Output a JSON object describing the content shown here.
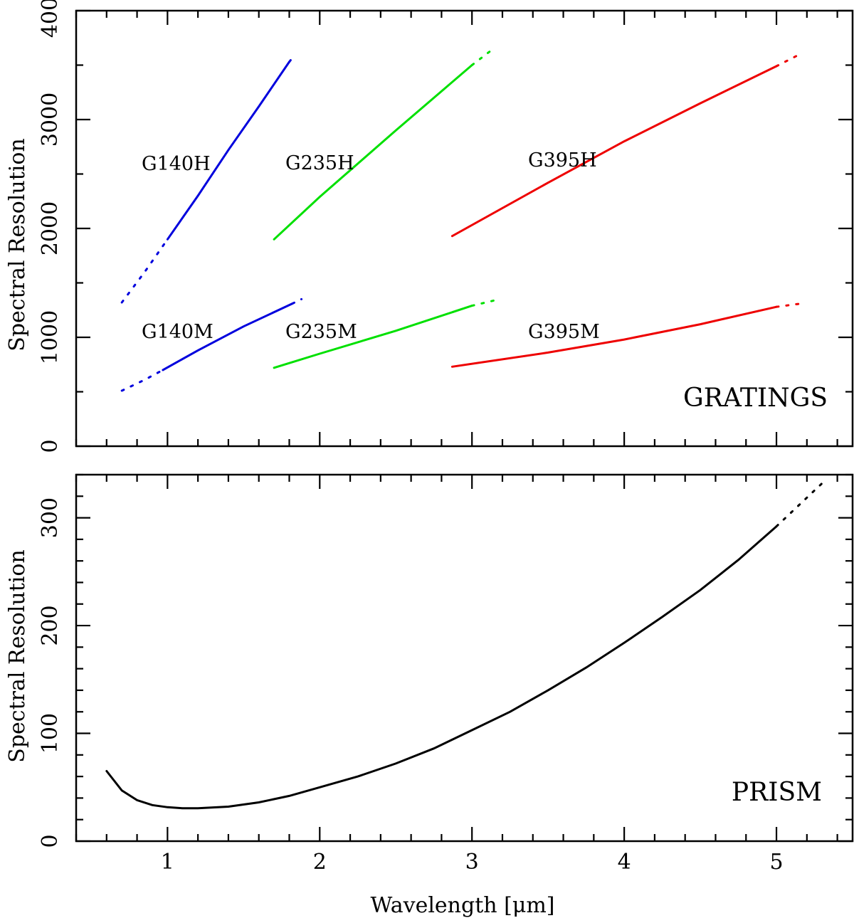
{
  "chart_data": [
    {
      "type": "line",
      "panel_label": "GRATINGS",
      "ylabel": "Spectral Resolution",
      "xlim": [
        0.4,
        5.5
      ],
      "ylim": [
        0,
        4000
      ],
      "yticks": [
        "0",
        "1000",
        "2000",
        "3000",
        "4000"
      ],
      "colors": {
        "G140": "#0000dd",
        "G235": "#00e000",
        "G395": "#ee0000"
      },
      "series": [
        {
          "name": "G140H",
          "color": "#0000dd",
          "solid": [
            [
              1.0,
              1900
            ],
            [
              1.2,
              2300
            ],
            [
              1.4,
              2720
            ],
            [
              1.6,
              3120
            ],
            [
              1.8,
              3530
            ]
          ],
          "extension_low": [
            [
              0.7,
              1320
            ],
            [
              0.85,
              1600
            ],
            [
              1.0,
              1900
            ]
          ],
          "extension_high": [
            [
              1.8,
              3530
            ],
            [
              1.84,
              3600
            ]
          ]
        },
        {
          "name": "G235H",
          "color": "#00e000",
          "solid": [
            [
              1.7,
              1900
            ],
            [
              2.0,
              2290
            ],
            [
              2.5,
              2900
            ],
            [
              3.0,
              3500
            ]
          ],
          "extension_high": [
            [
              3.0,
              3500
            ],
            [
              3.14,
              3650
            ]
          ]
        },
        {
          "name": "G395H",
          "color": "#ee0000",
          "solid": [
            [
              2.87,
              1930
            ],
            [
              3.5,
              2420
            ],
            [
              4.0,
              2800
            ],
            [
              4.5,
              3150
            ],
            [
              5.0,
              3490
            ]
          ],
          "extension_high": [
            [
              5.0,
              3490
            ],
            [
              5.14,
              3590
            ]
          ]
        },
        {
          "name": "G140M",
          "color": "#0000dd",
          "solid": [
            [
              0.97,
              700
            ],
            [
              1.2,
              880
            ],
            [
              1.5,
              1100
            ],
            [
              1.82,
              1310
            ]
          ],
          "extension_low": [
            [
              0.7,
              510
            ],
            [
              0.85,
              610
            ],
            [
              0.97,
              700
            ]
          ],
          "extension_high": [
            [
              1.82,
              1310
            ],
            [
              1.88,
              1350
            ]
          ]
        },
        {
          "name": "G235M",
          "color": "#00e000",
          "solid": [
            [
              1.7,
              720
            ],
            [
              2.0,
              850
            ],
            [
              2.5,
              1060
            ],
            [
              3.0,
              1290
            ]
          ],
          "extension_high": [
            [
              3.0,
              1290
            ],
            [
              3.15,
              1340
            ]
          ]
        },
        {
          "name": "G395M",
          "color": "#ee0000",
          "solid": [
            [
              2.87,
              730
            ],
            [
              3.5,
              860
            ],
            [
              4.0,
              980
            ],
            [
              4.5,
              1120
            ],
            [
              5.0,
              1280
            ]
          ],
          "extension_high": [
            [
              5.0,
              1280
            ],
            [
              5.16,
              1310
            ]
          ]
        }
      ]
    },
    {
      "type": "line",
      "panel_label": "PRISM",
      "xlabel": "Wavelength [μm]",
      "ylabel": "Spectral Resolution",
      "xlim": [
        0.4,
        5.5
      ],
      "ylim": [
        0,
        340
      ],
      "xticks": [
        "1",
        "2",
        "3",
        "4",
        "5"
      ],
      "yticks": [
        "0",
        "100",
        "200",
        "300"
      ],
      "series": [
        {
          "name": "PRISM",
          "color": "#000000",
          "solid": [
            [
              0.6,
              65
            ],
            [
              0.7,
              47
            ],
            [
              0.8,
              38
            ],
            [
              0.9,
              33.5
            ],
            [
              1.0,
              31.5
            ],
            [
              1.1,
              30.5
            ],
            [
              1.2,
              30.5
            ],
            [
              1.4,
              32
            ],
            [
              1.6,
              36
            ],
            [
              1.8,
              42
            ],
            [
              2.0,
              50
            ],
            [
              2.25,
              60
            ],
            [
              2.5,
              72
            ],
            [
              2.75,
              86
            ],
            [
              3.0,
              103
            ],
            [
              3.25,
              120
            ],
            [
              3.5,
              140
            ],
            [
              3.75,
              161
            ],
            [
              4.0,
              184
            ],
            [
              4.25,
              208
            ],
            [
              4.5,
              233
            ],
            [
              4.75,
              261
            ],
            [
              5.0,
              292
            ]
          ],
          "extension_high": [
            [
              5.0,
              292
            ],
            [
              5.15,
              312
            ],
            [
              5.3,
              332
            ]
          ]
        }
      ]
    }
  ]
}
